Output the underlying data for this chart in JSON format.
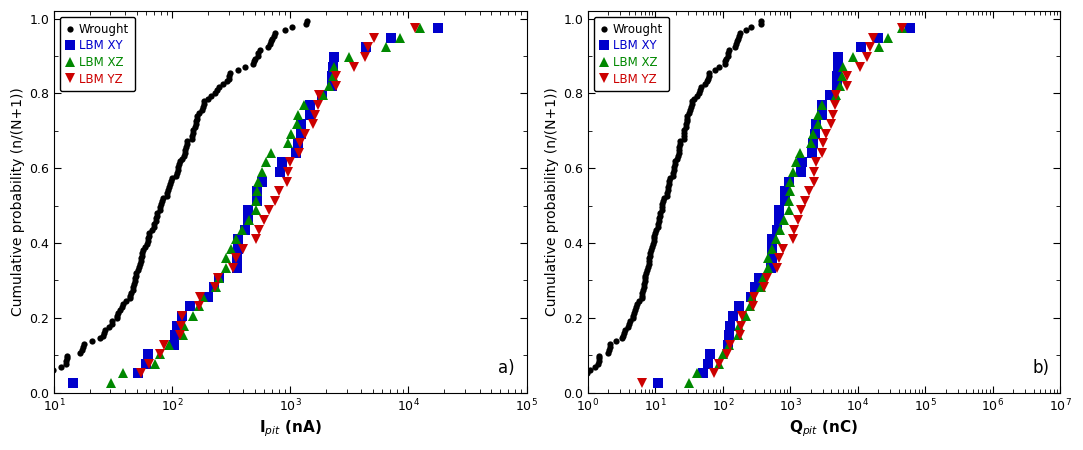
{
  "panel_a": {
    "xlabel": "I$_{pit}$ (nA)",
    "ylabel": "Cumulative probability (n/(N+1))",
    "xlim": [
      10,
      100000
    ],
    "ylim": [
      0.0,
      1.02
    ],
    "yticks": [
      0.0,
      0.2,
      0.4,
      0.6,
      0.8,
      1.0
    ],
    "label": "a)",
    "wrought": {
      "n_points": 130,
      "log10_mean": 1.9,
      "log10_std": 0.55,
      "color": "#000000",
      "marker": "o",
      "label": "Wrought",
      "seed": 7
    },
    "lbm_xy": {
      "n_points": 38,
      "log10_mean": 2.7,
      "log10_std": 0.62,
      "color": "#0000CC",
      "marker": "s",
      "label": "LBM XY",
      "seed": 22
    },
    "lbm_xz": {
      "n_points": 38,
      "log10_mean": 2.85,
      "log10_std": 0.62,
      "color": "#008800",
      "marker": "^",
      "label": "LBM XZ",
      "seed": 33
    },
    "lbm_yz": {
      "n_points": 38,
      "log10_mean": 2.85,
      "log10_std": 0.65,
      "color": "#CC0000",
      "marker": "v",
      "label": "LBM YZ",
      "seed": 44
    }
  },
  "panel_b": {
    "xlabel": "Q$_{pit}$ (nC)",
    "ylabel": "Cumulative probability (n/(N+1))",
    "xlim": [
      1,
      10000000
    ],
    "ylim": [
      0.0,
      1.02
    ],
    "yticks": [
      0.0,
      0.2,
      0.4,
      0.6,
      0.8,
      1.0
    ],
    "label": "b)",
    "wrought": {
      "n_points": 130,
      "log10_mean": 1.1,
      "log10_std": 0.65,
      "color": "#000000",
      "marker": "o",
      "label": "Wrought",
      "seed": 7
    },
    "lbm_xy": {
      "n_points": 38,
      "log10_mean": 2.9,
      "log10_std": 0.75,
      "color": "#0000CC",
      "marker": "s",
      "label": "LBM XY",
      "seed": 22
    },
    "lbm_xz": {
      "n_points": 38,
      "log10_mean": 3.15,
      "log10_std": 0.75,
      "color": "#008800",
      "marker": "^",
      "label": "LBM XZ",
      "seed": 33
    },
    "lbm_yz": {
      "n_points": 38,
      "log10_mean": 3.2,
      "log10_std": 0.78,
      "color": "#CC0000",
      "marker": "v",
      "label": "LBM YZ",
      "seed": 44
    }
  },
  "background_color": "#ffffff",
  "legend_fontsize": 8.5,
  "axis_fontsize": 10,
  "label_fontsize": 11,
  "tick_fontsize": 9,
  "marker_size_wrought": 4.5,
  "marker_size_lbm": 6.5
}
